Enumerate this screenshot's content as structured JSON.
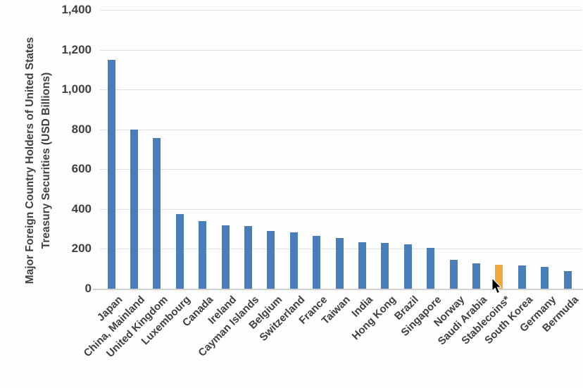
{
  "chart_data": {
    "type": "bar",
    "title": "",
    "ylabel_line1": "Major Foreign Country Holders of United States",
    "ylabel_line2": "Treasury Securities  (USD Billions)",
    "categories": [
      "Japan",
      "China, Mainland",
      "United Kingdom",
      "Luxembourg",
      "Canada",
      "Ireland",
      "Cayman Islands",
      "Belgium",
      "Switzerland",
      "France",
      "Taiwan",
      "India",
      "Hong Kong",
      "Brazil",
      "Singapore",
      "Norway",
      "Saudi Arabia",
      "Stablecoins*",
      "South Korea",
      "Germany",
      "Bermuda"
    ],
    "values": [
      1150,
      800,
      755,
      375,
      340,
      320,
      315,
      290,
      283,
      265,
      253,
      235,
      230,
      224,
      205,
      145,
      128,
      122,
      118,
      110,
      88
    ],
    "highlight_category": "Stablecoins*",
    "ylim": [
      0,
      1400
    ],
    "ytick_step": 200,
    "ytick_labels": [
      "0",
      "200",
      "400",
      "600",
      "800",
      "1,000",
      "1,200",
      "1,400"
    ],
    "grid": true,
    "legend": "none",
    "colors": {
      "bar": "#4a7eb8",
      "highlight": "#f2a93c",
      "gridline": "#dedede",
      "axis_text": "#3f3f3f"
    }
  }
}
